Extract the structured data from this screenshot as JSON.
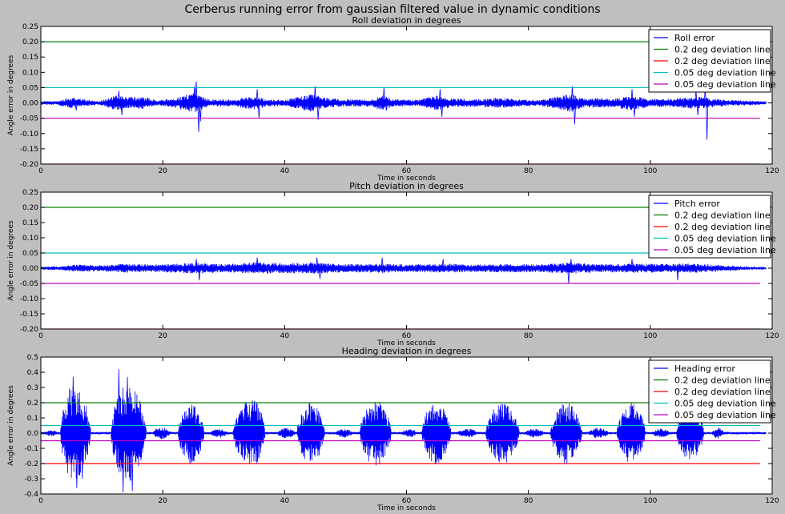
{
  "figure": {
    "title": "Cerberus running error from gaussian filtered value in dynamic conditions",
    "colors": {
      "background": "#bfbfbf",
      "axes_face": "#ffffff",
      "signal": "#0000ff",
      "green": "#008000",
      "red": "#ff0000",
      "cyan": "#00bfbf",
      "magenta": "#bf00bf"
    }
  },
  "chart_data": [
    {
      "type": "line",
      "title": "Roll deviation in degrees",
      "xlabel": "Time in seconds",
      "ylabel": "Angle error in degrees",
      "xlim": [
        0,
        120
      ],
      "ylim": [
        -0.2,
        0.25
      ],
      "xticks": [
        "0",
        "20",
        "40",
        "60",
        "80",
        "100",
        "120"
      ],
      "yticks": [
        "-0.20",
        "-0.15",
        "-0.10",
        "-0.05",
        "0.00",
        "0.05",
        "0.10",
        "0.15",
        "0.20",
        "0.25"
      ],
      "grid": false,
      "legend_position": "top-right",
      "signal": {
        "name": "Roll error",
        "x_range": [
          0,
          119
        ],
        "base_amplitude": 0.008,
        "envelope": [
          {
            "t": 0,
            "a": 0.006
          },
          {
            "t": 2.5,
            "a": 0.006
          },
          {
            "t": 5,
            "a": 0.017
          },
          {
            "t": 8,
            "a": 0.01
          },
          {
            "t": 9.5,
            "a": 0.006
          },
          {
            "t": 12.5,
            "a": 0.025
          },
          {
            "t": 14,
            "a": 0.02
          },
          {
            "t": 17,
            "a": 0.02
          },
          {
            "t": 19,
            "a": 0.008
          },
          {
            "t": 22,
            "a": 0.015
          },
          {
            "t": 25,
            "a": 0.035
          },
          {
            "t": 26.5,
            "a": 0.02
          },
          {
            "t": 28,
            "a": 0.012
          },
          {
            "t": 32,
            "a": 0.012
          },
          {
            "t": 35,
            "a": 0.025
          },
          {
            "t": 37,
            "a": 0.012
          },
          {
            "t": 40,
            "a": 0.01
          },
          {
            "t": 44.5,
            "a": 0.03
          },
          {
            "t": 46,
            "a": 0.02
          },
          {
            "t": 49,
            "a": 0.012
          },
          {
            "t": 54,
            "a": 0.012
          },
          {
            "t": 56,
            "a": 0.025
          },
          {
            "t": 58,
            "a": 0.012
          },
          {
            "t": 62,
            "a": 0.01
          },
          {
            "t": 65,
            "a": 0.025
          },
          {
            "t": 67,
            "a": 0.015
          },
          {
            "t": 72,
            "a": 0.012
          },
          {
            "t": 75,
            "a": 0.018
          },
          {
            "t": 78,
            "a": 0.012
          },
          {
            "t": 82,
            "a": 0.01
          },
          {
            "t": 87,
            "a": 0.03
          },
          {
            "t": 89,
            "a": 0.015
          },
          {
            "t": 94,
            "a": 0.015
          },
          {
            "t": 97,
            "a": 0.025
          },
          {
            "t": 100,
            "a": 0.012
          },
          {
            "t": 104,
            "a": 0.015
          },
          {
            "t": 108,
            "a": 0.02
          },
          {
            "t": 111,
            "a": 0.012
          },
          {
            "t": 116,
            "a": 0.008
          },
          {
            "t": 119,
            "a": 0.005
          }
        ],
        "spikes": [
          {
            "t": 5.5,
            "v": 0.015
          },
          {
            "t": 5.8,
            "v": -0.025
          },
          {
            "t": 12.8,
            "v": 0.04
          },
          {
            "t": 13.3,
            "v": -0.04
          },
          {
            "t": 25.5,
            "v": 0.07
          },
          {
            "t": 25.9,
            "v": -0.095
          },
          {
            "t": 25.2,
            "v": 0.055
          },
          {
            "t": 26.2,
            "v": -0.06
          },
          {
            "t": 35.5,
            "v": 0.045
          },
          {
            "t": 35.8,
            "v": -0.05
          },
          {
            "t": 45,
            "v": 0.055
          },
          {
            "t": 45.5,
            "v": -0.055
          },
          {
            "t": 56.3,
            "v": 0.05
          },
          {
            "t": 56.7,
            "v": -0.025
          },
          {
            "t": 65.5,
            "v": 0.045
          },
          {
            "t": 65.8,
            "v": -0.045
          },
          {
            "t": 87.2,
            "v": 0.055
          },
          {
            "t": 87.6,
            "v": -0.07
          },
          {
            "t": 97,
            "v": 0.045
          },
          {
            "t": 97.4,
            "v": -0.045
          },
          {
            "t": 107.5,
            "v": 0.04
          },
          {
            "t": 107.8,
            "v": -0.04
          },
          {
            "t": 109,
            "v": 0.05
          },
          {
            "t": 109.3,
            "v": -0.12
          }
        ]
      },
      "hlines": [
        {
          "name": "0.2 deg deviation line",
          "y": 0.2,
          "color": "#008000"
        },
        {
          "name": "0.2 deg deviation line",
          "y": -0.2,
          "color": "#ff0000"
        },
        {
          "name": "0.05 deg deviation line",
          "y": 0.05,
          "color": "#00bfbf"
        },
        {
          "name": "0.05 deg deviation line",
          "y": -0.05,
          "color": "#bf00bf"
        }
      ],
      "hline_x_range": [
        0,
        118
      ]
    },
    {
      "type": "line",
      "title": "Pitch deviation in degrees",
      "xlabel": "Time in seconds",
      "ylabel": "Angle error in degrees",
      "xlim": [
        0,
        120
      ],
      "ylim": [
        -0.2,
        0.25
      ],
      "xticks": [
        "0",
        "20",
        "40",
        "60",
        "80",
        "100",
        "120"
      ],
      "yticks": [
        "-0.20",
        "-0.15",
        "-0.10",
        "-0.05",
        "0.00",
        "0.05",
        "0.10",
        "0.15",
        "0.20",
        "0.25"
      ],
      "grid": false,
      "legend_position": "top-right",
      "signal": {
        "name": "Pitch error",
        "x_range": [
          0,
          119
        ],
        "base_amplitude": 0.008,
        "envelope": [
          {
            "t": 0,
            "a": 0.005
          },
          {
            "t": 3,
            "a": 0.006
          },
          {
            "t": 6,
            "a": 0.012
          },
          {
            "t": 10,
            "a": 0.01
          },
          {
            "t": 14,
            "a": 0.015
          },
          {
            "t": 18,
            "a": 0.012
          },
          {
            "t": 22,
            "a": 0.015
          },
          {
            "t": 26,
            "a": 0.018
          },
          {
            "t": 30,
            "a": 0.013
          },
          {
            "t": 35,
            "a": 0.02
          },
          {
            "t": 40,
            "a": 0.016
          },
          {
            "t": 45,
            "a": 0.02
          },
          {
            "t": 50,
            "a": 0.013
          },
          {
            "t": 56,
            "a": 0.016
          },
          {
            "t": 60,
            "a": 0.012
          },
          {
            "t": 66,
            "a": 0.015
          },
          {
            "t": 72,
            "a": 0.012
          },
          {
            "t": 77,
            "a": 0.014
          },
          {
            "t": 82,
            "a": 0.013
          },
          {
            "t": 87,
            "a": 0.018
          },
          {
            "t": 92,
            "a": 0.013
          },
          {
            "t": 97,
            "a": 0.016
          },
          {
            "t": 102,
            "a": 0.014
          },
          {
            "t": 106,
            "a": 0.016
          },
          {
            "t": 112,
            "a": 0.01
          },
          {
            "t": 116,
            "a": 0.006
          },
          {
            "t": 119,
            "a": 0.004
          }
        ],
        "spikes": [
          {
            "t": 25.5,
            "v": 0.03
          },
          {
            "t": 26,
            "v": -0.04
          },
          {
            "t": 35.5,
            "v": 0.035
          },
          {
            "t": 45.3,
            "v": 0.035
          },
          {
            "t": 45.8,
            "v": -0.035
          },
          {
            "t": 56,
            "v": 0.035
          },
          {
            "t": 66,
            "v": 0.03
          },
          {
            "t": 87,
            "v": 0.03
          },
          {
            "t": 86.6,
            "v": -0.05
          },
          {
            "t": 97,
            "v": 0.03
          },
          {
            "t": 104.5,
            "v": -0.04
          }
        ]
      },
      "hlines": [
        {
          "name": "0.2 deg deviation line",
          "y": 0.2,
          "color": "#008000"
        },
        {
          "name": "0.2 deg deviation line",
          "y": -0.2,
          "color": "#ff0000"
        },
        {
          "name": "0.05 deg deviation line",
          "y": 0.05,
          "color": "#00bfbf"
        },
        {
          "name": "0.05 deg deviation line",
          "y": -0.05,
          "color": "#bf00bf"
        }
      ],
      "hline_x_range": [
        0,
        118
      ]
    },
    {
      "type": "line",
      "title": "Heading deviation in degrees",
      "xlabel": "Time in seconds",
      "ylabel": "Angle error in degrees",
      "xlim": [
        0,
        120
      ],
      "ylim": [
        -0.4,
        0.5
      ],
      "xticks": [
        "0",
        "20",
        "40",
        "60",
        "80",
        "100",
        "120"
      ],
      "yticks": [
        "-0.4",
        "-0.3",
        "-0.2",
        "-0.1",
        "0.0",
        "0.1",
        "0.2",
        "0.3",
        "0.4",
        "0.5"
      ],
      "grid": false,
      "legend_position": "top-right",
      "signal": {
        "name": "Heading error",
        "x_range": [
          0,
          119
        ],
        "base_amplitude": 0.008,
        "bursts": [
          {
            "start": 3.2,
            "end": 8.2,
            "peak_pos": 0.42,
            "peak": 0.32
          },
          {
            "start": 11.5,
            "end": 17.3,
            "peak_pos": 0.45,
            "peak": 0.33
          },
          {
            "start": 22.5,
            "end": 26.8,
            "peak_pos": 0.5,
            "peak": 0.2
          },
          {
            "start": 31.5,
            "end": 36.8,
            "peak_pos": 0.6,
            "peak": 0.22
          },
          {
            "start": 42.0,
            "end": 46.6,
            "peak_pos": 0.5,
            "peak": 0.2
          },
          {
            "start": 52.3,
            "end": 57.5,
            "peak_pos": 0.5,
            "peak": 0.22
          },
          {
            "start": 62.5,
            "end": 67.3,
            "peak_pos": 0.5,
            "peak": 0.21
          },
          {
            "start": 73.0,
            "end": 78.5,
            "peak_pos": 0.5,
            "peak": 0.2
          },
          {
            "start": 83.6,
            "end": 88.8,
            "peak_pos": 0.5,
            "peak": 0.2
          },
          {
            "start": 94.5,
            "end": 99.2,
            "peak_pos": 0.5,
            "peak": 0.2
          },
          {
            "start": 104.3,
            "end": 108.8,
            "peak_pos": 0.5,
            "peak": 0.18
          }
        ],
        "small_bursts": [
          {
            "start": 0.5,
            "end": 3.0,
            "peak": 0.02
          },
          {
            "start": 18.0,
            "end": 21.5,
            "peak": 0.04
          },
          {
            "start": 27.5,
            "end": 31.0,
            "peak": 0.03
          },
          {
            "start": 38.5,
            "end": 42.0,
            "peak": 0.035
          },
          {
            "start": 48.0,
            "end": 51.5,
            "peak": 0.03
          },
          {
            "start": 59.0,
            "end": 62.0,
            "peak": 0.03
          },
          {
            "start": 68.0,
            "end": 72.0,
            "peak": 0.03
          },
          {
            "start": 79.0,
            "end": 83.0,
            "peak": 0.03
          },
          {
            "start": 89.5,
            "end": 93.5,
            "peak": 0.035
          },
          {
            "start": 100.0,
            "end": 103.5,
            "peak": 0.03
          },
          {
            "start": 110.0,
            "end": 112.2,
            "peak": 0.04
          }
        ],
        "spikes": [
          {
            "t": 5.3,
            "v": 0.37
          },
          {
            "t": 5.9,
            "v": -0.36
          },
          {
            "t": 6.8,
            "v": -0.3
          },
          {
            "t": 12.8,
            "v": 0.42
          },
          {
            "t": 13.5,
            "v": -0.39
          },
          {
            "t": 14.2,
            "v": 0.37
          },
          {
            "t": 15.0,
            "v": -0.38
          }
        ]
      },
      "hlines": [
        {
          "name": "0.2 deg deviation line",
          "y": 0.2,
          "color": "#008000"
        },
        {
          "name": "0.2 deg deviation line",
          "y": -0.2,
          "color": "#ff0000"
        },
        {
          "name": "0.05 deg deviation line",
          "y": 0.05,
          "color": "#00bfbf"
        },
        {
          "name": "0.05 deg deviation line",
          "y": -0.05,
          "color": "#bf00bf"
        }
      ],
      "hline_x_range": [
        0,
        118
      ]
    }
  ]
}
